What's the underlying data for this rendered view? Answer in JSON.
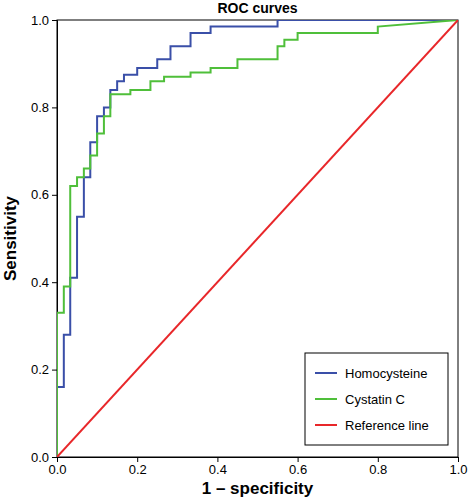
{
  "chart_data": {
    "type": "line",
    "title": "ROC curves",
    "x_label": "1 – specificity",
    "y_label": "Sensitivity",
    "xlim": [
      0,
      1
    ],
    "ylim": [
      0,
      1
    ],
    "xticks": [
      {
        "value": 0,
        "label": "0.0"
      },
      0.2,
      0.4,
      0.6,
      0.8,
      {
        "value": 1,
        "label": "1.0"
      }
    ],
    "yticks": [
      {
        "value": 0,
        "label": "0.0"
      },
      0.2,
      0.4,
      0.6,
      0.8,
      {
        "value": 1,
        "label": "1.0"
      }
    ],
    "legend": "lower right",
    "series": [
      {
        "name": "Homocysteine",
        "color": "#3a4fa8",
        "x": [
          0,
          0,
          0.017,
          0.017,
          0.033,
          0.033,
          0.05,
          0.05,
          0.067,
          0.067,
          0.083,
          0.083,
          0.1,
          0.1,
          0.117,
          0.117,
          0.133,
          0.133,
          0.15,
          0.15,
          0.167,
          0.167,
          0.2,
          0.2,
          0.25,
          0.25,
          0.283,
          0.283,
          0.333,
          0.333,
          0.383,
          0.383,
          0.55,
          0.55,
          1
        ],
        "values": [
          0,
          0.16,
          0.16,
          0.28,
          0.28,
          0.41,
          0.41,
          0.55,
          0.55,
          0.64,
          0.64,
          0.72,
          0.72,
          0.78,
          0.78,
          0.8,
          0.8,
          0.84,
          0.84,
          0.86,
          0.86,
          0.875,
          0.875,
          0.89,
          0.89,
          0.91,
          0.91,
          0.94,
          0.94,
          0.97,
          0.97,
          0.985,
          0.985,
          1,
          1
        ]
      },
      {
        "name": "Cystatin C",
        "color": "#4fbf3a",
        "x": [
          0,
          0,
          0.017,
          0.017,
          0.033,
          0.033,
          0.05,
          0.05,
          0.067,
          0.067,
          0.083,
          0.083,
          0.1,
          0.1,
          0.117,
          0.117,
          0.133,
          0.133,
          0.183,
          0.183,
          0.233,
          0.233,
          0.267,
          0.267,
          0.333,
          0.333,
          0.383,
          0.383,
          0.45,
          0.45,
          0.55,
          0.55,
          0.567,
          0.567,
          0.6,
          0.6,
          0.8,
          0.8,
          1
        ],
        "values": [
          0,
          0.33,
          0.33,
          0.39,
          0.39,
          0.62,
          0.62,
          0.64,
          0.64,
          0.66,
          0.66,
          0.69,
          0.69,
          0.74,
          0.74,
          0.78,
          0.78,
          0.83,
          0.83,
          0.84,
          0.84,
          0.86,
          0.86,
          0.87,
          0.87,
          0.88,
          0.88,
          0.89,
          0.89,
          0.91,
          0.91,
          0.94,
          0.94,
          0.955,
          0.955,
          0.97,
          0.97,
          0.985,
          1
        ]
      },
      {
        "name": "Reference line",
        "color": "#e8272a",
        "x": [
          0,
          1
        ],
        "values": [
          0,
          1
        ]
      }
    ]
  }
}
